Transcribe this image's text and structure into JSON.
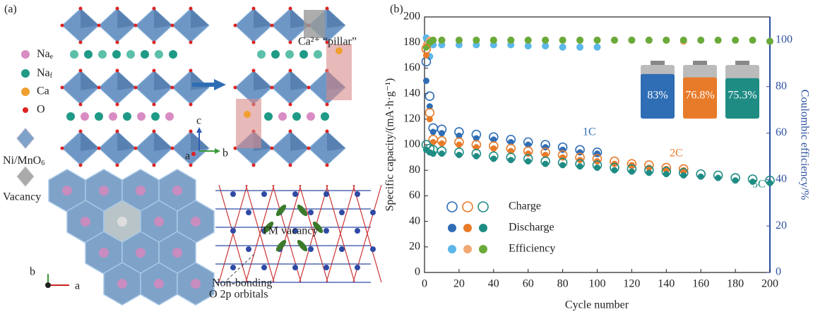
{
  "panel_a": {
    "label": "(a)",
    "legend": [
      {
        "text": "Na",
        "sub": "e"
      },
      {
        "text": "Na",
        "sub": "f"
      },
      {
        "text": "Ca"
      },
      {
        "text": "O"
      }
    ],
    "polyhedron_labels": [
      {
        "text": "Ni/MnO",
        "sub": "6"
      },
      {
        "text": "Vacancy"
      }
    ],
    "axes_top": [
      "c",
      "a",
      "b"
    ],
    "axes_bottom": [
      "b",
      "a"
    ],
    "pillar": "Ca²⁺ “pillar”",
    "tm_vacancy": "TM vacancy",
    "non_bonding": [
      "Non-bonding",
      "O 2p orbitals"
    ]
  },
  "chart_data": {
    "type": "scatter",
    "label": "(b)",
    "x_label": "Cycle number",
    "y_label": "Specific capacity/(mA·h·g⁻¹)",
    "y2_label": "Coulombic efficiency/%",
    "xlim": [
      0,
      200
    ],
    "xticks": [
      0,
      20,
      40,
      60,
      80,
      100,
      120,
      140,
      160,
      180,
      200
    ],
    "ylim": [
      0,
      200
    ],
    "yticks": [
      0,
      20,
      40,
      60,
      80,
      100,
      120,
      140,
      160,
      180,
      200
    ],
    "y2lim": [
      0,
      110
    ],
    "y2ticks": [
      0,
      20,
      40,
      60,
      80,
      100
    ],
    "legend": [
      "Charge",
      "Discharge",
      "Efficiency"
    ],
    "rates": [
      {
        "name": "1C",
        "color": "#2f6db5",
        "efficiency_color": "#5bb8e8",
        "x": [
          1,
          3,
          5,
          10,
          20,
          30,
          40,
          50,
          60,
          70,
          80,
          90,
          100
        ],
        "charge": [
          165,
          138,
          113,
          112,
          110,
          108,
          106,
          104,
          102,
          100,
          98,
          96,
          94
        ],
        "discharge": [
          150,
          130,
          110,
          109,
          107,
          105,
          104,
          102,
          100,
          98,
          96,
          94,
          93
        ],
        "efficiency": [
          101,
          93,
          98,
          98,
          98,
          98,
          98,
          98,
          97.5,
          97.5,
          97,
          97,
          97
        ]
      },
      {
        "name": "2C",
        "color": "#e87b2a",
        "efficiency_color": "#f3a874",
        "x": [
          1,
          3,
          5,
          10,
          20,
          30,
          40,
          50,
          60,
          70,
          80,
          90,
          100,
          110,
          120,
          130,
          140,
          150
        ],
        "charge": [
          175,
          125,
          104,
          103,
          102,
          100,
          99,
          97,
          95,
          94,
          92,
          90,
          89,
          87,
          85,
          84,
          82,
          81
        ],
        "discharge": [
          170,
          120,
          102,
          101,
          100,
          98,
          97,
          95,
          93,
          92,
          90,
          88,
          87,
          85,
          84,
          82,
          81,
          80
        ],
        "efficiency": [
          98,
          100,
          100,
          100,
          100,
          100,
          100,
          100,
          100,
          100,
          100,
          100,
          100,
          100,
          100,
          100,
          100,
          99.5
        ]
      },
      {
        "name": "5C",
        "color": "#1f8c84",
        "efficiency_color": "#6aaa3a",
        "x": [
          1,
          3,
          5,
          10,
          20,
          30,
          40,
          50,
          60,
          70,
          80,
          90,
          100,
          110,
          120,
          130,
          140,
          150,
          160,
          170,
          180,
          190,
          200
        ],
        "charge": [
          100,
          97,
          96,
          95,
          94,
          93,
          91,
          90,
          89,
          87,
          86,
          85,
          84,
          82,
          81,
          80,
          79,
          78,
          77,
          76,
          74,
          73,
          72
        ],
        "discharge": [
          96,
          94,
          93,
          93,
          92,
          91,
          89,
          88,
          87,
          85,
          84,
          83,
          82,
          80,
          79,
          78,
          77,
          76,
          75,
          74,
          72,
          71,
          70
        ],
        "efficiency": [
          97,
          99,
          100,
          100,
          100,
          100,
          100,
          100,
          100,
          100,
          100,
          100,
          100,
          100,
          100,
          100,
          100,
          100,
          100,
          100,
          100,
          100,
          99.5
        ]
      }
    ],
    "retention": [
      {
        "value": 83,
        "label": "83%"
      },
      {
        "value": 76.8,
        "label": "76.8%"
      },
      {
        "value": 75.3,
        "label": "75.3%"
      }
    ]
  }
}
